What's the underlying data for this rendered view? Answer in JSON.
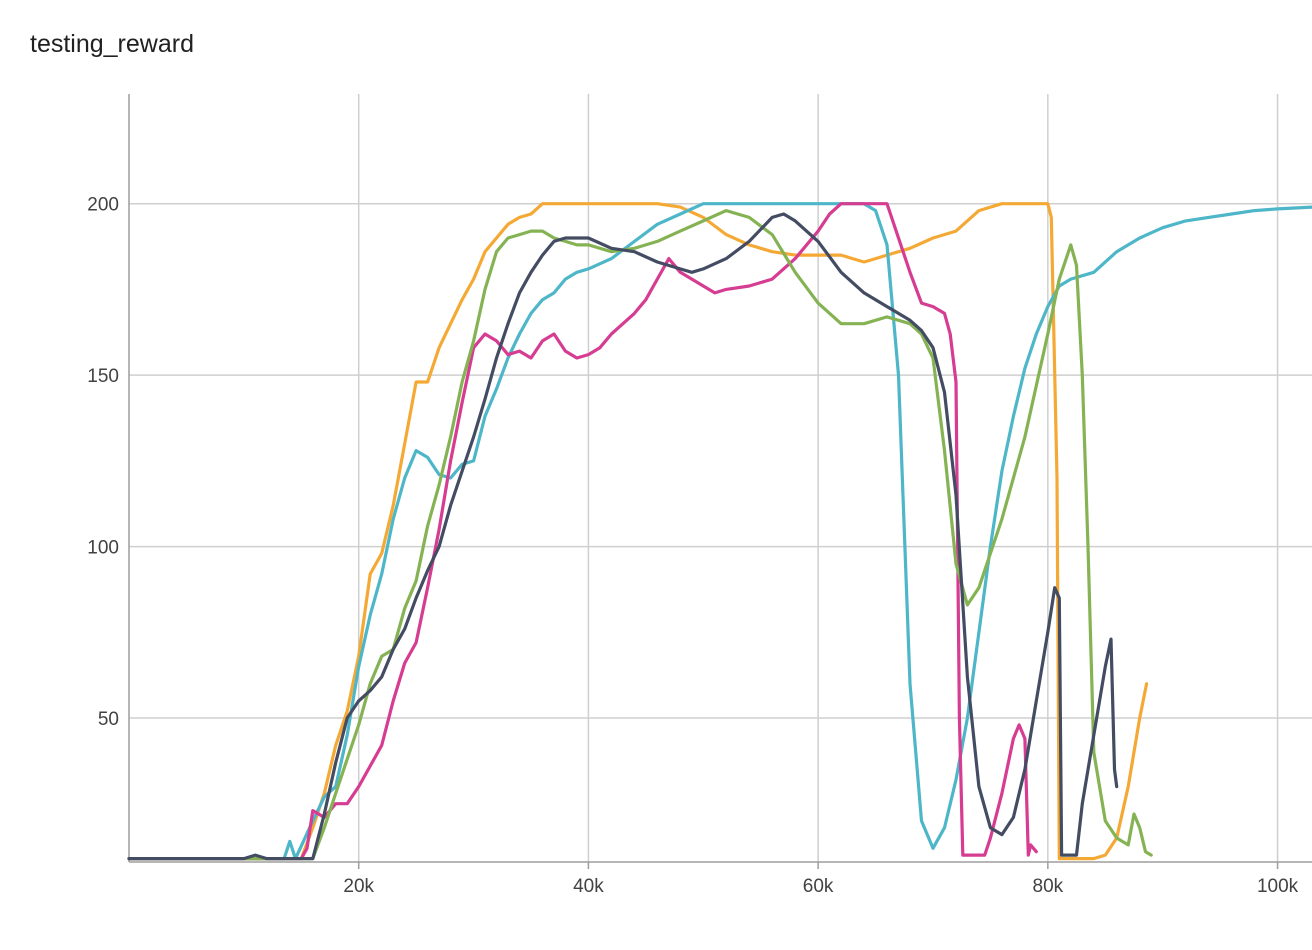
{
  "title": "testing_reward",
  "chart_data": {
    "type": "line",
    "title": "testing_reward",
    "xlabel": "",
    "ylabel": "",
    "xlim": [
      0,
      103000
    ],
    "ylim": [
      8,
      232
    ],
    "x_ticks": [
      20000,
      40000,
      60000,
      80000,
      100000
    ],
    "x_tick_labels": [
      "20k",
      "40k",
      "60k",
      "80k",
      "100k"
    ],
    "y_ticks": [
      50,
      100,
      150,
      200
    ],
    "y_tick_labels": [
      "50",
      "100",
      "150",
      "200"
    ],
    "grid": true,
    "legend": "none",
    "series": [
      {
        "color": "#f5a935",
        "points": [
          [
            0,
            9
          ],
          [
            15000,
            9
          ],
          [
            16000,
            18
          ],
          [
            17000,
            28
          ],
          [
            18000,
            42
          ],
          [
            19000,
            52
          ],
          [
            20000,
            68
          ],
          [
            21000,
            92
          ],
          [
            22000,
            98
          ],
          [
            23000,
            112
          ],
          [
            24000,
            130
          ],
          [
            25000,
            148
          ],
          [
            26000,
            148
          ],
          [
            27000,
            158
          ],
          [
            28000,
            165
          ],
          [
            29000,
            172
          ],
          [
            30000,
            178
          ],
          [
            31000,
            186
          ],
          [
            32000,
            190
          ],
          [
            33000,
            194
          ],
          [
            34000,
            196
          ],
          [
            35000,
            197
          ],
          [
            36000,
            200
          ],
          [
            40000,
            200
          ],
          [
            46000,
            200
          ],
          [
            48000,
            199
          ],
          [
            50000,
            196
          ],
          [
            52000,
            191
          ],
          [
            54000,
            188
          ],
          [
            56000,
            186
          ],
          [
            58000,
            185
          ],
          [
            60000,
            185
          ],
          [
            62000,
            185
          ],
          [
            63000,
            184
          ],
          [
            64000,
            183
          ],
          [
            65000,
            184
          ],
          [
            66000,
            185
          ],
          [
            68000,
            187
          ],
          [
            70000,
            190
          ],
          [
            72000,
            192
          ],
          [
            74000,
            198
          ],
          [
            76000,
            200
          ],
          [
            80000,
            200
          ],
          [
            80300,
            196
          ],
          [
            80800,
            120
          ],
          [
            81000,
            9
          ],
          [
            84000,
            9
          ],
          [
            85000,
            10
          ],
          [
            86000,
            15
          ],
          [
            87000,
            30
          ],
          [
            88000,
            50
          ],
          [
            88600,
            60
          ]
        ]
      },
      {
        "color": "#4db6c8",
        "points": [
          [
            0,
            9
          ],
          [
            13500,
            9
          ],
          [
            14000,
            14
          ],
          [
            14500,
            9
          ],
          [
            16000,
            20
          ],
          [
            17000,
            27
          ],
          [
            18000,
            30
          ],
          [
            19000,
            45
          ],
          [
            20000,
            65
          ],
          [
            21000,
            80
          ],
          [
            22000,
            92
          ],
          [
            23000,
            108
          ],
          [
            24000,
            120
          ],
          [
            25000,
            128
          ],
          [
            26000,
            126
          ],
          [
            27000,
            121
          ],
          [
            28000,
            120
          ],
          [
            29000,
            124
          ],
          [
            30000,
            125
          ],
          [
            31000,
            138
          ],
          [
            32000,
            146
          ],
          [
            33000,
            155
          ],
          [
            34000,
            162
          ],
          [
            35000,
            168
          ],
          [
            36000,
            172
          ],
          [
            37000,
            174
          ],
          [
            38000,
            178
          ],
          [
            39000,
            180
          ],
          [
            40000,
            181
          ],
          [
            42000,
            184
          ],
          [
            44000,
            189
          ],
          [
            46000,
            194
          ],
          [
            48000,
            197
          ],
          [
            50000,
            200
          ],
          [
            60000,
            200
          ],
          [
            64000,
            200
          ],
          [
            65000,
            198
          ],
          [
            66000,
            188
          ],
          [
            67000,
            150
          ],
          [
            68000,
            60
          ],
          [
            69000,
            20
          ],
          [
            70000,
            12
          ],
          [
            71000,
            18
          ],
          [
            72000,
            32
          ],
          [
            73000,
            50
          ],
          [
            74000,
            75
          ],
          [
            75000,
            100
          ],
          [
            76000,
            122
          ],
          [
            77000,
            138
          ],
          [
            78000,
            152
          ],
          [
            79000,
            162
          ],
          [
            80000,
            170
          ],
          [
            81000,
            176
          ],
          [
            82000,
            178
          ],
          [
            84000,
            180
          ],
          [
            86000,
            186
          ],
          [
            88000,
            190
          ],
          [
            90000,
            193
          ],
          [
            92000,
            195
          ],
          [
            94000,
            196
          ],
          [
            96000,
            197
          ],
          [
            98000,
            198
          ],
          [
            100000,
            198.5
          ],
          [
            103000,
            199
          ]
        ]
      },
      {
        "color": "#d63c91",
        "points": [
          [
            0,
            9
          ],
          [
            15000,
            9
          ],
          [
            15500,
            12
          ],
          [
            16000,
            23
          ],
          [
            17000,
            21
          ],
          [
            18000,
            25
          ],
          [
            19000,
            25
          ],
          [
            20000,
            30
          ],
          [
            21000,
            36
          ],
          [
            22000,
            42
          ],
          [
            23000,
            55
          ],
          [
            24000,
            66
          ],
          [
            25000,
            72
          ],
          [
            26000,
            88
          ],
          [
            27000,
            105
          ],
          [
            28000,
            125
          ],
          [
            29000,
            142
          ],
          [
            30000,
            158
          ],
          [
            31000,
            162
          ],
          [
            32000,
            160
          ],
          [
            33000,
            156
          ],
          [
            34000,
            157
          ],
          [
            35000,
            155
          ],
          [
            36000,
            160
          ],
          [
            37000,
            162
          ],
          [
            38000,
            157
          ],
          [
            39000,
            155
          ],
          [
            40000,
            156
          ],
          [
            41000,
            158
          ],
          [
            42000,
            162
          ],
          [
            43000,
            165
          ],
          [
            44000,
            168
          ],
          [
            45000,
            172
          ],
          [
            46000,
            178
          ],
          [
            47000,
            184
          ],
          [
            48000,
            180
          ],
          [
            49000,
            178
          ],
          [
            50000,
            176
          ],
          [
            51000,
            174
          ],
          [
            52000,
            175
          ],
          [
            54000,
            176
          ],
          [
            56000,
            178
          ],
          [
            58000,
            184
          ],
          [
            60000,
            192
          ],
          [
            61000,
            197
          ],
          [
            62000,
            200
          ],
          [
            66000,
            200
          ],
          [
            67000,
            190
          ],
          [
            68000,
            180
          ],
          [
            69000,
            171
          ],
          [
            70000,
            170
          ],
          [
            71000,
            168
          ],
          [
            71500,
            162
          ],
          [
            72000,
            148
          ],
          [
            72300,
            50
          ],
          [
            72600,
            10
          ],
          [
            74500,
            10
          ],
          [
            75000,
            15
          ],
          [
            76000,
            28
          ],
          [
            77000,
            44
          ],
          [
            77500,
            48
          ],
          [
            78000,
            44
          ],
          [
            78300,
            10
          ],
          [
            78500,
            13
          ],
          [
            79000,
            11
          ]
        ]
      },
      {
        "color": "#85b354",
        "points": [
          [
            0,
            9
          ],
          [
            16000,
            9
          ],
          [
            17000,
            18
          ],
          [
            18000,
            28
          ],
          [
            19000,
            38
          ],
          [
            20000,
            48
          ],
          [
            21000,
            60
          ],
          [
            22000,
            68
          ],
          [
            23000,
            70
          ],
          [
            24000,
            82
          ],
          [
            25000,
            90
          ],
          [
            26000,
            106
          ],
          [
            27000,
            118
          ],
          [
            28000,
            132
          ],
          [
            29000,
            148
          ],
          [
            30000,
            160
          ],
          [
            31000,
            175
          ],
          [
            32000,
            186
          ],
          [
            33000,
            190
          ],
          [
            34000,
            191
          ],
          [
            35000,
            192
          ],
          [
            36000,
            192
          ],
          [
            37000,
            190
          ],
          [
            38000,
            189
          ],
          [
            39000,
            188
          ],
          [
            40000,
            188
          ],
          [
            42000,
            186
          ],
          [
            44000,
            187
          ],
          [
            46000,
            189
          ],
          [
            48000,
            192
          ],
          [
            50000,
            195
          ],
          [
            52000,
            198
          ],
          [
            54000,
            196
          ],
          [
            56000,
            191
          ],
          [
            58000,
            180
          ],
          [
            60000,
            171
          ],
          [
            62000,
            165
          ],
          [
            64000,
            165
          ],
          [
            66000,
            167
          ],
          [
            68000,
            165
          ],
          [
            69000,
            162
          ],
          [
            70000,
            155
          ],
          [
            71000,
            128
          ],
          [
            72000,
            95
          ],
          [
            73000,
            83
          ],
          [
            74000,
            88
          ],
          [
            76000,
            108
          ],
          [
            78000,
            132
          ],
          [
            80000,
            162
          ],
          [
            81000,
            178
          ],
          [
            82000,
            188
          ],
          [
            82500,
            182
          ],
          [
            83000,
            150
          ],
          [
            83500,
            100
          ],
          [
            84000,
            40
          ],
          [
            85000,
            20
          ],
          [
            86000,
            15
          ],
          [
            87000,
            13
          ],
          [
            87500,
            22
          ],
          [
            88000,
            18
          ],
          [
            88500,
            11
          ],
          [
            89000,
            10
          ]
        ]
      },
      {
        "color": "#434c62",
        "points": [
          [
            0,
            9
          ],
          [
            10000,
            9
          ],
          [
            11000,
            10
          ],
          [
            12000,
            9
          ],
          [
            16000,
            9
          ],
          [
            17000,
            22
          ],
          [
            18000,
            37
          ],
          [
            19000,
            50
          ],
          [
            20000,
            55
          ],
          [
            21000,
            58
          ],
          [
            22000,
            62
          ],
          [
            23000,
            70
          ],
          [
            24000,
            76
          ],
          [
            25000,
            85
          ],
          [
            26000,
            93
          ],
          [
            27000,
            100
          ],
          [
            28000,
            112
          ],
          [
            29000,
            122
          ],
          [
            30000,
            132
          ],
          [
            31000,
            143
          ],
          [
            32000,
            155
          ],
          [
            33000,
            165
          ],
          [
            34000,
            174
          ],
          [
            35000,
            180
          ],
          [
            36000,
            185
          ],
          [
            37000,
            189
          ],
          [
            38000,
            190
          ],
          [
            39000,
            190
          ],
          [
            40000,
            190
          ],
          [
            42000,
            187
          ],
          [
            44000,
            186
          ],
          [
            46000,
            183
          ],
          [
            48000,
            181
          ],
          [
            49000,
            180
          ],
          [
            50000,
            181
          ],
          [
            52000,
            184
          ],
          [
            54000,
            189
          ],
          [
            56000,
            196
          ],
          [
            57000,
            197
          ],
          [
            58000,
            195
          ],
          [
            60000,
            189
          ],
          [
            62000,
            180
          ],
          [
            64000,
            174
          ],
          [
            66000,
            170
          ],
          [
            68000,
            166
          ],
          [
            69000,
            163
          ],
          [
            70000,
            158
          ],
          [
            71000,
            145
          ],
          [
            72000,
            115
          ],
          [
            73000,
            62
          ],
          [
            74000,
            30
          ],
          [
            75000,
            18
          ],
          [
            76000,
            16
          ],
          [
            77000,
            21
          ],
          [
            78000,
            35
          ],
          [
            79000,
            55
          ],
          [
            80000,
            75
          ],
          [
            80600,
            88
          ],
          [
            81000,
            85
          ],
          [
            81200,
            10
          ],
          [
            82500,
            10
          ],
          [
            83000,
            25
          ],
          [
            84000,
            45
          ],
          [
            85000,
            65
          ],
          [
            85500,
            73
          ],
          [
            85800,
            35
          ],
          [
            86000,
            30
          ]
        ]
      }
    ]
  }
}
